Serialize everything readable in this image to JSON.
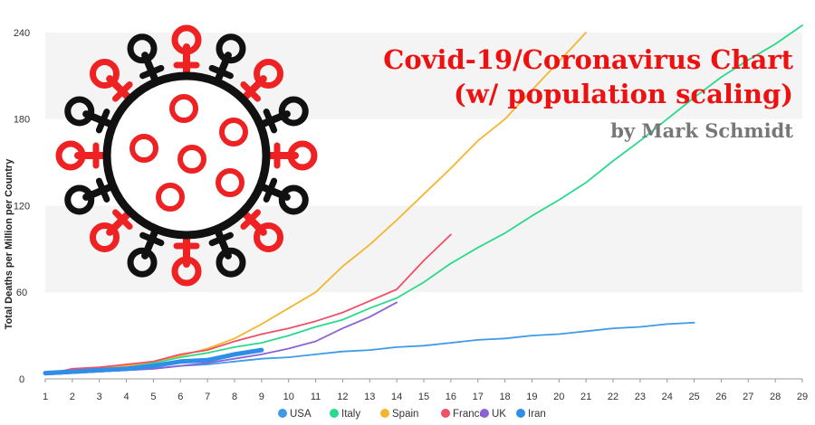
{
  "chart_data": {
    "type": "line",
    "title": "Covid-19/Coronavirus Chart",
    "subtitle": "(w/ population scaling)",
    "credit": "by Mark Schmidt",
    "ylabel": "Total Deaths per Million per Country",
    "xlabel": "",
    "xlim": [
      1,
      29
    ],
    "ylim": [
      0,
      250
    ],
    "x_ticks": [
      1,
      2,
      3,
      4,
      5,
      6,
      7,
      8,
      9,
      10,
      11,
      12,
      13,
      14,
      15,
      16,
      17,
      18,
      19,
      20,
      21,
      22,
      23,
      24,
      25,
      26,
      27,
      28,
      29
    ],
    "y_ticks": [
      0,
      60,
      120,
      180,
      240
    ],
    "grid": "horizontal bands",
    "legend_position": "bottom",
    "colors": {
      "title": "#ee1111",
      "credit": "#777777",
      "virus_red": "#ee2222",
      "virus_dark": "#111111",
      "band": "#f4f4f4"
    },
    "series": [
      {
        "name": "USA",
        "color": "#3f9ae8",
        "width": 1.8,
        "x": [
          1,
          2,
          3,
          4,
          5,
          6,
          7,
          8,
          9,
          10,
          11,
          12,
          13,
          14,
          15,
          16,
          17,
          18,
          19,
          20,
          21,
          22,
          23,
          24,
          25
        ],
        "y": [
          3,
          4,
          5,
          6,
          7,
          9,
          10,
          12,
          14,
          15,
          17,
          19,
          20,
          22,
          23,
          25,
          27,
          28,
          30,
          31,
          33,
          35,
          36,
          38,
          39
        ]
      },
      {
        "name": "Italy",
        "color": "#2bd98c",
        "width": 1.8,
        "x": [
          1,
          2,
          3,
          4,
          5,
          6,
          7,
          8,
          9,
          10,
          11,
          12,
          13,
          14,
          15,
          16,
          17,
          18,
          19,
          20,
          21,
          22,
          23,
          24,
          25,
          26,
          27,
          28,
          29
        ],
        "y": [
          3,
          5,
          7,
          9,
          11,
          15,
          18,
          22,
          25,
          30,
          36,
          41,
          49,
          56,
          67,
          80,
          91,
          101,
          113,
          124,
          136,
          151,
          165,
          180,
          195,
          209,
          221,
          232,
          245
        ]
      },
      {
        "name": "Spain",
        "color": "#f2b630",
        "width": 1.8,
        "x": [
          1,
          2,
          3,
          4,
          5,
          6,
          7,
          8,
          9,
          10,
          11,
          12,
          13,
          14,
          15,
          16,
          17,
          18,
          19,
          20,
          21
        ],
        "y": [
          3,
          5,
          7,
          9,
          12,
          16,
          21,
          28,
          38,
          49,
          60,
          78,
          93,
          110,
          128,
          146,
          165,
          180,
          200,
          220,
          240
        ]
      },
      {
        "name": "France",
        "color": "#ef5065",
        "width": 1.8,
        "x": [
          1,
          2,
          3,
          4,
          5,
          6,
          7,
          8,
          9,
          10,
          11,
          12,
          13,
          14,
          15,
          16
        ],
        "y": [
          3,
          7,
          8,
          10,
          12,
          17,
          20,
          26,
          31,
          35,
          40,
          46,
          54,
          62,
          82,
          100
        ]
      },
      {
        "name": "UK",
        "color": "#8a62d6",
        "width": 1.8,
        "x": [
          1,
          2,
          3,
          4,
          5,
          6,
          7,
          8,
          9,
          10,
          11,
          12,
          13,
          14
        ],
        "y": [
          3,
          4,
          5,
          6,
          7,
          9,
          11,
          14,
          17,
          21,
          26,
          35,
          43,
          53
        ]
      },
      {
        "name": "Iran",
        "color": "#2f8ee8",
        "width": 5,
        "x": [
          1,
          2,
          3,
          4,
          5,
          6,
          7,
          8,
          9
        ],
        "y": [
          4,
          5,
          6,
          7,
          9,
          12,
          13,
          17,
          20
        ]
      }
    ]
  }
}
